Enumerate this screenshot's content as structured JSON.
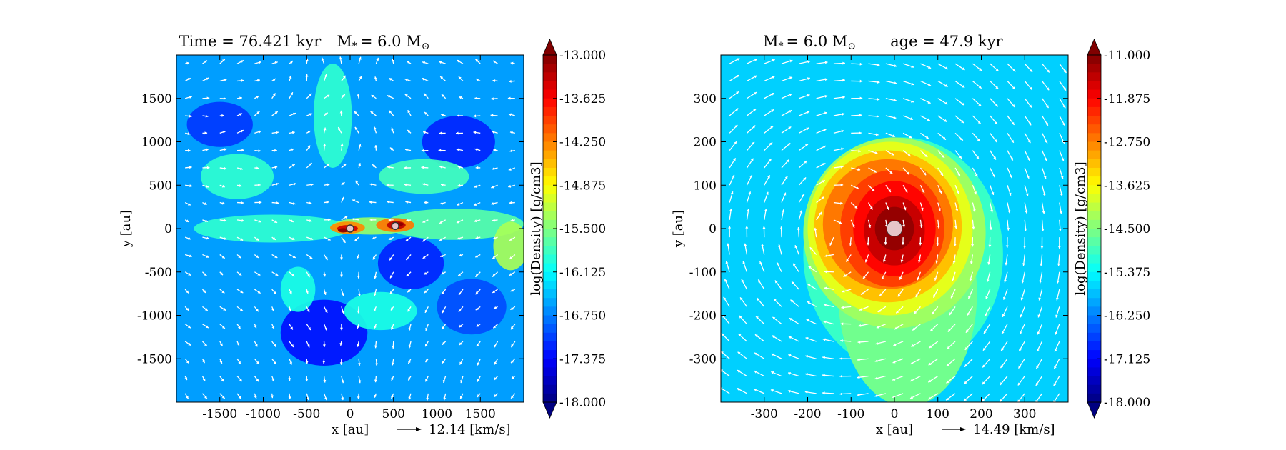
{
  "chart_data": [
    {
      "type": "heatmap",
      "title": "Time = 76.421 kyr    M$_*$ = 6.0 M$_\\odot$",
      "title_parts": {
        "left": "Time = 76.421 kyr",
        "mass_label": "M",
        "mass_sub": "*",
        "mass_value": "= 6.0 M",
        "mass_unit_sub": "⊙"
      },
      "xlabel": "x [au]",
      "ylabel": "y [au]",
      "xlim": [
        -2000,
        2000
      ],
      "ylim": [
        -2000,
        2000
      ],
      "x_ticks": [
        -1500,
        -1000,
        -500,
        0,
        500,
        1000,
        1500
      ],
      "x_tick_labels": [
        "-1500",
        "-1000",
        "-500",
        "0",
        "500",
        "1000",
        "1500"
      ],
      "y_ticks": [
        1500,
        1000,
        500,
        0,
        -500,
        -1000,
        -1500
      ],
      "y_tick_labels": [
        "1500",
        "1000",
        "500",
        "0",
        "-500",
        "-1000",
        "-1500"
      ],
      "colorbar": {
        "label": "log(Density) [g/cm3]",
        "min": -18.0,
        "max": -13.0,
        "ticks": [
          -13.0,
          -13.625,
          -14.25,
          -14.875,
          -15.5,
          -16.125,
          -16.75,
          -17.375,
          -18.0
        ],
        "tick_labels": [
          "-13.000",
          "-13.625",
          "-14.250",
          "-14.875",
          "-15.500",
          "-16.125",
          "-16.750",
          "-17.375",
          "-18.000"
        ],
        "colormap": "jet",
        "extend": "both"
      },
      "velocity_key": "12.14 [km/s]",
      "sinks": [
        {
          "x": 0,
          "y": 0
        },
        {
          "x": 520,
          "y": 30
        }
      ],
      "grid": false
    },
    {
      "type": "heatmap",
      "title": "M$_*$ = 6.0 M$_\\odot$        age = 47.9 kyr",
      "title_parts": {
        "mass_label": "M",
        "mass_sub": "*",
        "mass_value": "= 6.0 M",
        "mass_unit_sub": "⊙",
        "right": "age = 47.9 kyr"
      },
      "xlabel": "x [au]",
      "ylabel": "y [au]",
      "xlim": [
        -400,
        400
      ],
      "ylim": [
        -400,
        400
      ],
      "x_ticks": [
        -300,
        -200,
        -100,
        0,
        100,
        200,
        300
      ],
      "x_tick_labels": [
        "-300",
        "-200",
        "-100",
        "0",
        "100",
        "200",
        "300"
      ],
      "y_ticks": [
        300,
        200,
        100,
        0,
        -100,
        -200,
        -300
      ],
      "y_tick_labels": [
        "300",
        "200",
        "100",
        "0",
        "-100",
        "-200",
        "-300"
      ],
      "colorbar": {
        "label": "log(Density) [g/cm3]",
        "min": -18.0,
        "max": -11.0,
        "ticks": [
          -11.0,
          -11.875,
          -12.75,
          -13.625,
          -14.5,
          -15.375,
          -16.25,
          -17.125,
          -18.0
        ],
        "tick_labels": [
          "-11.000",
          "-11.875",
          "-12.750",
          "-13.625",
          "-14.500",
          "-15.375",
          "-16.250",
          "-17.125",
          "-18.000"
        ],
        "colormap": "jet",
        "extend": "both"
      },
      "velocity_key": "14.49 [km/s]",
      "sinks": [
        {
          "x": 0,
          "y": 0
        }
      ],
      "grid": false
    }
  ]
}
